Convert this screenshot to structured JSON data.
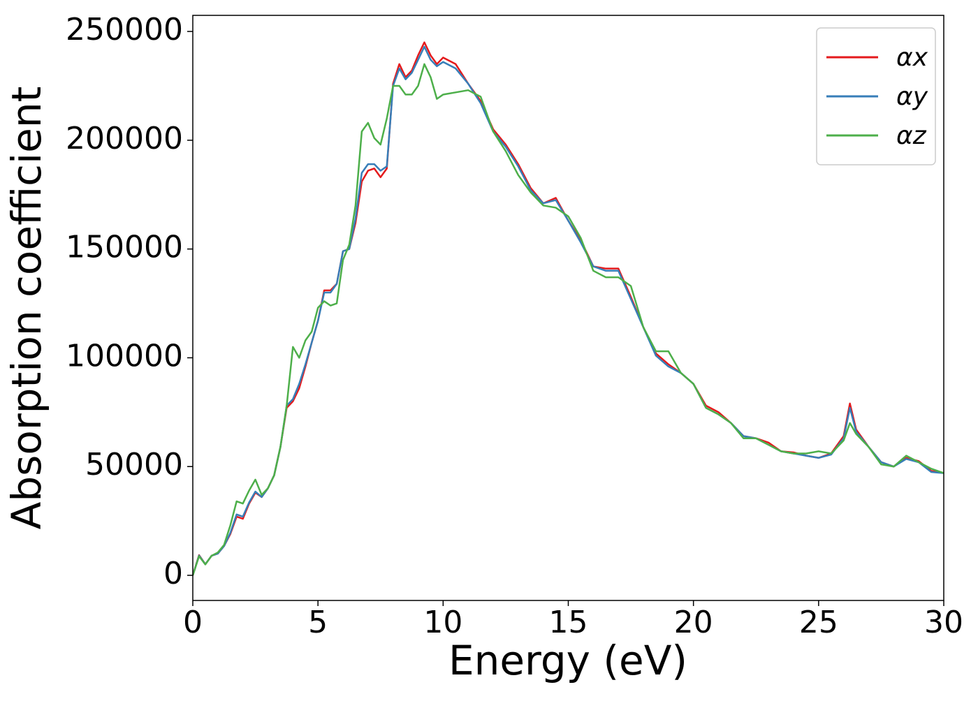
{
  "chart_data": {
    "type": "line",
    "xlabel": "Energy (eV)",
    "ylabel": "Absorption coefficient",
    "xlim": [
      0,
      30
    ],
    "xticks": [
      0,
      5,
      10,
      15,
      20,
      25,
      30
    ],
    "ylim": [
      -11550,
      257400
    ],
    "yticks": [
      0,
      50000,
      100000,
      150000,
      200000,
      250000
    ],
    "legend": "upper right",
    "x": [
      0,
      0.25,
      0.5,
      0.75,
      1,
      1.25,
      1.5,
      1.75,
      2,
      2.25,
      2.5,
      2.75,
      3,
      3.25,
      3.5,
      3.75,
      4,
      4.25,
      4.5,
      4.75,
      5,
      5.25,
      5.5,
      5.75,
      6,
      6.25,
      6.5,
      6.75,
      7,
      7.25,
      7.5,
      7.75,
      8,
      8.25,
      8.5,
      8.75,
      9,
      9.25,
      9.5,
      9.75,
      10,
      10.5,
      11,
      11.5,
      12,
      12.5,
      13,
      13.5,
      14,
      14.5,
      15,
      15.5,
      16,
      16.5,
      17,
      17.5,
      18,
      18.5,
      19,
      19.5,
      20,
      20.5,
      21,
      21.5,
      22,
      22.5,
      23,
      23.5,
      24,
      24.5,
      25,
      25.5,
      26,
      26.25,
      26.5,
      27,
      27.5,
      28,
      28.5,
      29,
      29.5,
      30
    ],
    "series": [
      {
        "name": "αx",
        "color": "#e41a1c",
        "values": [
          0,
          9300,
          5100,
          9000,
          10000,
          13500,
          19000,
          27000,
          26000,
          33000,
          38000,
          36000,
          40000,
          46000,
          59000,
          77000,
          80000,
          86000,
          96000,
          107000,
          117000,
          131000,
          131000,
          134000,
          149000,
          150000,
          162000,
          181000,
          186000,
          187000,
          183000,
          187000,
          226000,
          235000,
          229000,
          232000,
          239000,
          245000,
          239000,
          235000,
          238000,
          235000,
          226000,
          218000,
          205000,
          198000,
          189000,
          178000,
          171000,
          173500,
          163000,
          154000,
          142000,
          141000,
          141000,
          128000,
          114000,
          102000,
          97000,
          93000,
          88000,
          78000,
          75000,
          70000,
          64000,
          63000,
          61000,
          57000,
          56500,
          55000,
          54000,
          56000,
          64000,
          79000,
          67000,
          59000,
          52000,
          50000,
          54000,
          52500,
          48000,
          47000
        ]
      },
      {
        "name": "αy",
        "color": "#377eb8",
        "values": [
          0,
          9100,
          5100,
          9000,
          10000,
          13500,
          19500,
          28000,
          27000,
          33500,
          38500,
          36000,
          40000,
          46000,
          59000,
          78000,
          81000,
          88000,
          97000,
          107000,
          117000,
          130000,
          130000,
          134000,
          149000,
          150000,
          164000,
          185000,
          189000,
          189000,
          186000,
          188000,
          225000,
          233000,
          228000,
          231000,
          237000,
          243000,
          237000,
          234000,
          236000,
          233000,
          226000,
          217000,
          204000,
          197000,
          188000,
          177000,
          171000,
          172500,
          163000,
          153000,
          142000,
          140000,
          140000,
          127000,
          114000,
          101000,
          96000,
          93000,
          88000,
          77000,
          74000,
          70000,
          64000,
          63000,
          60000,
          57000,
          56000,
          55000,
          54000,
          55500,
          63000,
          77000,
          66000,
          59000,
          52000,
          50000,
          53500,
          52000,
          47500,
          47000
        ]
      },
      {
        "name": "αz",
        "color": "#4daf4a",
        "values": [
          0,
          8800,
          5000,
          9000,
          10500,
          14000,
          23000,
          34000,
          33000,
          39000,
          44000,
          37000,
          40000,
          46000,
          59000,
          78000,
          105000,
          100000,
          108000,
          112000,
          123000,
          126000,
          124000,
          125000,
          145000,
          152000,
          170000,
          204000,
          208000,
          201000,
          198000,
          210000,
          225000,
          225000,
          221000,
          221000,
          225000,
          235000,
          229000,
          219000,
          221000,
          222000,
          223000,
          220000,
          204000,
          195000,
          184000,
          176000,
          170000,
          169000,
          165000,
          155000,
          140000,
          137000,
          137000,
          133000,
          114000,
          103000,
          103000,
          93000,
          88000,
          77000,
          74000,
          70000,
          63000,
          63000,
          60000,
          57000,
          56000,
          56000,
          57000,
          56000,
          62000,
          70000,
          65000,
          59000,
          51000,
          50000,
          55000,
          52000,
          49000,
          47000
        ]
      }
    ]
  }
}
